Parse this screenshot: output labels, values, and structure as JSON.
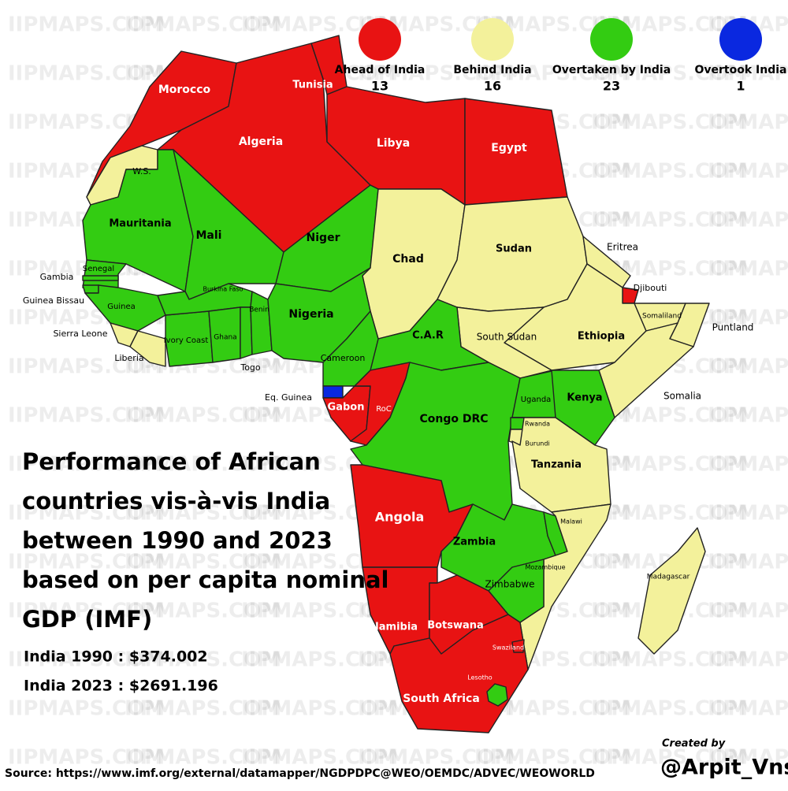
{
  "watermark": "IIPMAPS.COM",
  "legend": [
    {
      "label": "Ahead of India",
      "count": "13",
      "color": "#e81313"
    },
    {
      "label": "Behind India",
      "count": "16",
      "color": "#f3f19b"
    },
    {
      "label": "Overtaken by India",
      "count": "23",
      "color": "#33cc12"
    },
    {
      "label": "Overtook India",
      "count": "1",
      "color": "#0a28e0"
    }
  ],
  "title": [
    "Performance of African",
    "countries vis-à-vis India",
    "between 1990 and 2023",
    "based on per capita nominal",
    "GDP (IMF)"
  ],
  "india": [
    "India 1990 : $374.002",
    "India 2023 : $2691.196"
  ],
  "source": "Source: https://www.imf.org/external/datamapper/NGDPDPC@WEO/OEMDC/ADVEC/WEOWORLD",
  "credit": {
    "label": "Created by",
    "author": "@Arpit_Vns"
  },
  "regions": [
    {
      "name": "Morocco",
      "color": "#e81313"
    },
    {
      "name": "W.S.",
      "color": "#f3f19b"
    },
    {
      "name": "Algeria",
      "color": "#e81313"
    },
    {
      "name": "Tunisia",
      "color": "#e81313"
    },
    {
      "name": "Libya",
      "color": "#e81313"
    },
    {
      "name": "Egypt",
      "color": "#e81313"
    },
    {
      "name": "Mauritania",
      "color": "#33cc12"
    },
    {
      "name": "Mali",
      "color": "#33cc12"
    },
    {
      "name": "Niger",
      "color": "#33cc12"
    },
    {
      "name": "Chad",
      "color": "#f3f19b"
    },
    {
      "name": "Sudan",
      "color": "#f3f19b"
    },
    {
      "name": "Eritrea",
      "color": "#f3f19b"
    },
    {
      "name": "Djibouti",
      "color": "#e81313"
    },
    {
      "name": "Ethiopia",
      "color": "#f3f19b"
    },
    {
      "name": "Somaliland",
      "color": "#f3f19b"
    },
    {
      "name": "Puntland",
      "color": "#f3f19b"
    },
    {
      "name": "Somalia",
      "color": "#f3f19b"
    },
    {
      "name": "South Sudan",
      "color": "#f3f19b"
    },
    {
      "name": "C.A.R",
      "color": "#33cc12"
    },
    {
      "name": "Senegal",
      "color": "#33cc12"
    },
    {
      "name": "Gambia",
      "color": "#33cc12"
    },
    {
      "name": "Guinea Bissau",
      "color": "#33cc12"
    },
    {
      "name": "Guinea",
      "color": "#33cc12"
    },
    {
      "name": "Sierra Leone",
      "color": "#f3f19b"
    },
    {
      "name": "Liberia",
      "color": "#f3f19b"
    },
    {
      "name": "Ivory Coast",
      "color": "#33cc12"
    },
    {
      "name": "Burkina Faso",
      "color": "#33cc12"
    },
    {
      "name": "Ghana",
      "color": "#33cc12"
    },
    {
      "name": "Togo",
      "color": "#33cc12"
    },
    {
      "name": "Benin",
      "color": "#33cc12"
    },
    {
      "name": "Nigeria",
      "color": "#33cc12"
    },
    {
      "name": "Cameroon",
      "color": "#33cc12"
    },
    {
      "name": "Eq. Guinea",
      "color": "#0a28e0"
    },
    {
      "name": "Gabon",
      "color": "#e81313"
    },
    {
      "name": "RoC",
      "color": "#e81313"
    },
    {
      "name": "Congo DRC",
      "color": "#33cc12"
    },
    {
      "name": "Uganda",
      "color": "#33cc12"
    },
    {
      "name": "Kenya",
      "color": "#33cc12"
    },
    {
      "name": "Rwanda",
      "color": "#33cc12"
    },
    {
      "name": "Burundi",
      "color": "#f3f19b"
    },
    {
      "name": "Tanzania",
      "color": "#f3f19b"
    },
    {
      "name": "Angola",
      "color": "#e81313"
    },
    {
      "name": "Zambia",
      "color": "#33cc12"
    },
    {
      "name": "Malawi",
      "color": "#33cc12"
    },
    {
      "name": "Mozambique",
      "color": "#f3f19b"
    },
    {
      "name": "Zimbabwe",
      "color": "#33cc12"
    },
    {
      "name": "Namibia",
      "color": "#e81313"
    },
    {
      "name": "Botswana",
      "color": "#e81313"
    },
    {
      "name": "South Africa",
      "color": "#e81313"
    },
    {
      "name": "Lesotho",
      "color": "#33cc12"
    },
    {
      "name": "Swaziland",
      "color": "#e81313"
    },
    {
      "name": "Madagascar",
      "color": "#f3f19b"
    }
  ]
}
